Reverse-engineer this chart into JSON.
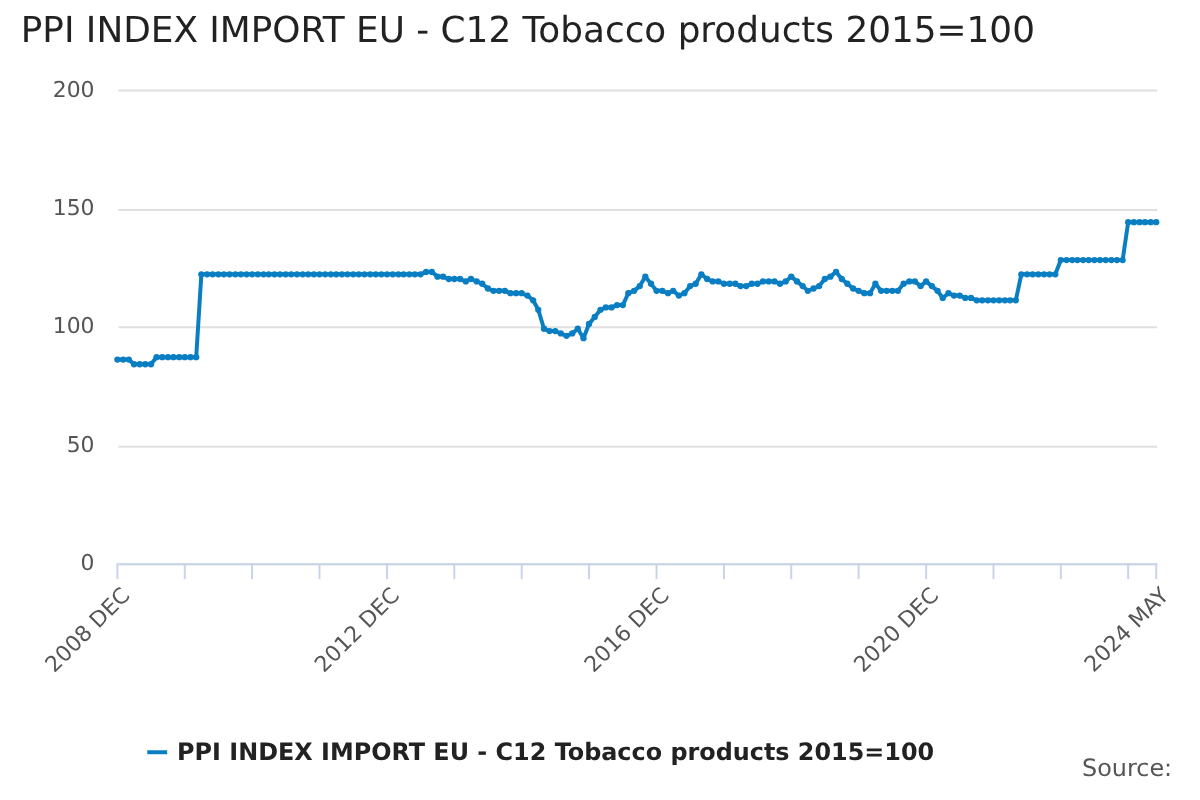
{
  "chart_data": {
    "type": "line",
    "title": "PPI INDEX IMPORT EU - C12 Tobacco products 2015=100",
    "x": [
      "2008-12",
      "2009-01",
      "2009-02",
      "2009-03",
      "2009-04",
      "2009-05",
      "2009-06",
      "2009-07",
      "2009-08",
      "2009-09",
      "2009-10",
      "2009-11",
      "2009-12",
      "2010-01",
      "2010-02",
      "2010-03",
      "2010-04",
      "2010-05",
      "2010-06",
      "2010-07",
      "2010-08",
      "2010-09",
      "2010-10",
      "2010-11",
      "2010-12",
      "2011-01",
      "2011-02",
      "2011-03",
      "2011-04",
      "2011-05",
      "2011-06",
      "2011-07",
      "2011-08",
      "2011-09",
      "2011-10",
      "2011-11",
      "2011-12",
      "2012-01",
      "2012-02",
      "2012-03",
      "2012-04",
      "2012-05",
      "2012-06",
      "2012-07",
      "2012-08",
      "2012-09",
      "2012-10",
      "2012-11",
      "2012-12",
      "2013-01",
      "2013-02",
      "2013-03",
      "2013-04",
      "2013-05",
      "2013-06",
      "2013-07",
      "2013-08",
      "2013-09",
      "2013-10",
      "2013-11",
      "2013-12",
      "2014-01",
      "2014-02",
      "2014-03",
      "2014-04",
      "2014-05",
      "2014-06",
      "2014-07",
      "2014-08",
      "2014-09",
      "2014-10",
      "2014-11",
      "2014-12",
      "2015-01",
      "2015-02",
      "2015-03",
      "2015-04",
      "2015-05",
      "2015-06",
      "2015-07",
      "2015-08",
      "2015-09",
      "2015-10",
      "2015-11",
      "2015-12",
      "2016-01",
      "2016-02",
      "2016-03",
      "2016-04",
      "2016-05",
      "2016-06",
      "2016-07",
      "2016-08",
      "2016-09",
      "2016-10",
      "2016-11",
      "2016-12",
      "2017-01",
      "2017-02",
      "2017-03",
      "2017-04",
      "2017-05",
      "2017-06",
      "2017-07",
      "2017-08",
      "2017-09",
      "2017-10",
      "2017-11",
      "2017-12",
      "2018-01",
      "2018-02",
      "2018-03",
      "2018-04",
      "2018-05",
      "2018-06",
      "2018-07",
      "2018-08",
      "2018-09",
      "2018-10",
      "2018-11",
      "2018-12",
      "2019-01",
      "2019-02",
      "2019-03",
      "2019-04",
      "2019-05",
      "2019-06",
      "2019-07",
      "2019-08",
      "2019-09",
      "2019-10",
      "2019-11",
      "2019-12",
      "2020-01",
      "2020-02",
      "2020-03",
      "2020-04",
      "2020-05",
      "2020-06",
      "2020-07",
      "2020-08",
      "2020-09",
      "2020-10",
      "2020-11",
      "2020-12",
      "2021-01",
      "2021-02",
      "2021-03",
      "2021-04",
      "2021-05",
      "2021-06",
      "2021-07",
      "2021-08",
      "2021-09",
      "2021-10",
      "2021-11",
      "2021-12",
      "2022-01",
      "2022-02",
      "2022-03",
      "2022-04",
      "2022-05",
      "2022-06",
      "2022-07",
      "2022-08",
      "2022-09",
      "2022-10",
      "2022-11",
      "2022-12",
      "2023-01",
      "2023-02",
      "2023-03",
      "2023-04",
      "2023-05",
      "2023-06",
      "2023-07",
      "2023-08",
      "2023-09",
      "2023-10",
      "2023-11",
      "2023-12",
      "2024-01",
      "2024-02",
      "2024-03",
      "2024-04",
      "2024-05"
    ],
    "series": [
      {
        "name": "PPI INDEX IMPORT EU - C12 Tobacco products 2015=100",
        "color": "#0a7ec2",
        "values": [
          86,
          86,
          86,
          84,
          84,
          84,
          84,
          87,
          87,
          87,
          87,
          87,
          87,
          87,
          87,
          122,
          122,
          122,
          122,
          122,
          122,
          122,
          122,
          122,
          122,
          122,
          122,
          122,
          122,
          122,
          122,
          122,
          122,
          122,
          122,
          122,
          122,
          122,
          122,
          122,
          122,
          122,
          122,
          122,
          122,
          122,
          122,
          122,
          122,
          122,
          122,
          122,
          122,
          122,
          122,
          123,
          123,
          121,
          121,
          120,
          120,
          120,
          119,
          120,
          119,
          118,
          116,
          115,
          115,
          115,
          114,
          114,
          114,
          113,
          111,
          107,
          99,
          98,
          98,
          97,
          96,
          97,
          99,
          95,
          101,
          104,
          107,
          108,
          108,
          109,
          109,
          114,
          115,
          117,
          121,
          118,
          115,
          115,
          114,
          115,
          113,
          114,
          117,
          118,
          122,
          120,
          119,
          119,
          118,
          118,
          118,
          117,
          117,
          118,
          118,
          119,
          119,
          119,
          118,
          119,
          121,
          119,
          117,
          115,
          116,
          117,
          120,
          121,
          123,
          120,
          118,
          116,
          115,
          114,
          114,
          118,
          115,
          115,
          115,
          115,
          118,
          119,
          119,
          117,
          119,
          117,
          115,
          112,
          114,
          113,
          113,
          112,
          112,
          111,
          111,
          111,
          111,
          111,
          111,
          111,
          111,
          122,
          122,
          122,
          122,
          122,
          122,
          122,
          128,
          128,
          128,
          128,
          128,
          128,
          128,
          128,
          128,
          128,
          128,
          128,
          144,
          144,
          144,
          144,
          144,
          144
        ]
      }
    ],
    "xlim": [
      "2008-12",
      "2024-05"
    ],
    "xticks": [
      {
        "value": "2008-12",
        "label": "2008 DEC"
      },
      {
        "value": "2009-12",
        "label": null
      },
      {
        "value": "2010-12",
        "label": null
      },
      {
        "value": "2011-12",
        "label": null
      },
      {
        "value": "2012-12",
        "label": "2012 DEC"
      },
      {
        "value": "2013-12",
        "label": null
      },
      {
        "value": "2014-12",
        "label": null
      },
      {
        "value": "2015-12",
        "label": null
      },
      {
        "value": "2016-12",
        "label": "2016 DEC"
      },
      {
        "value": "2017-12",
        "label": null
      },
      {
        "value": "2018-12",
        "label": null
      },
      {
        "value": "2019-12",
        "label": null
      },
      {
        "value": "2020-12",
        "label": "2020 DEC"
      },
      {
        "value": "2021-12",
        "label": null
      },
      {
        "value": "2022-12",
        "label": null
      },
      {
        "value": "2023-12",
        "label": null
      },
      {
        "value": "2024-05",
        "label": "2024 MAY"
      }
    ],
    "ylim": [
      0,
      200
    ],
    "yticks": [
      0,
      50,
      100,
      150,
      200
    ],
    "grid": "y",
    "legend": "bottom",
    "marker": "circle",
    "line_style": "solid",
    "annotations": [
      "Source:"
    ]
  }
}
